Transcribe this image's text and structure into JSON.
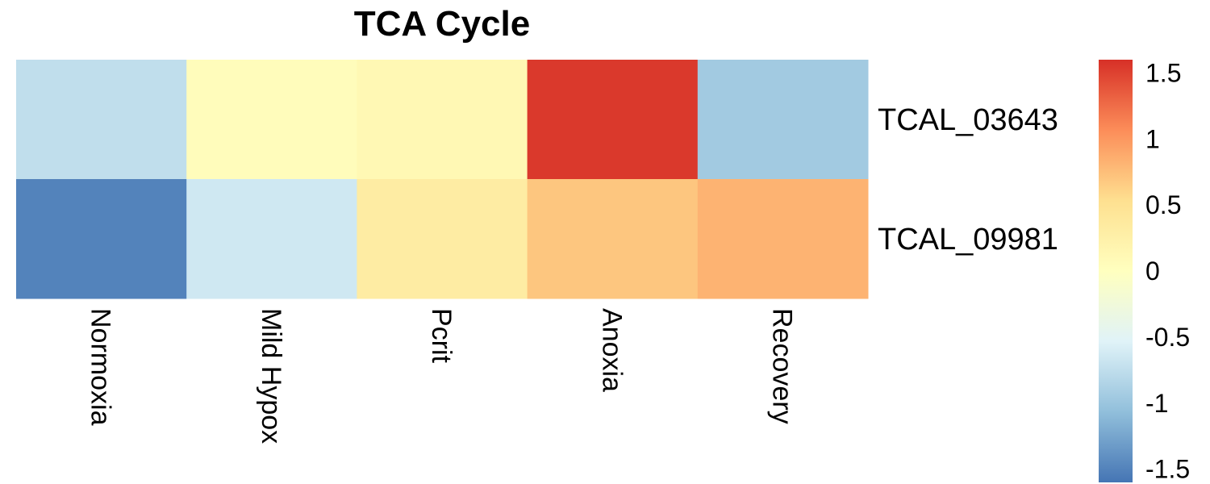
{
  "chart_data": {
    "type": "heatmap",
    "title": "TCA Cycle",
    "columns": [
      "Normoxia",
      "Mild Hypox",
      "Pcrit",
      "Anoxia",
      "Recovery"
    ],
    "rows": [
      "TCAL_03643",
      "TCAL_09981"
    ],
    "values": [
      [
        -0.75,
        0.05,
        0.12,
        1.55,
        -0.95
      ],
      [
        -1.5,
        -0.65,
        0.32,
        0.7,
        0.82
      ]
    ],
    "color_scale": {
      "min": -1.6,
      "max": 1.6,
      "stops": [
        "#4575B4",
        "#91BFDB",
        "#E0F3F8",
        "#FFFFBF",
        "#FEE090",
        "#FC8D59",
        "#D73027"
      ]
    },
    "legend": {
      "ticks": [
        "1.5",
        "1",
        "0.5",
        "0",
        "-0.5",
        "-1",
        "-1.5"
      ],
      "tick_values": [
        1.5,
        1,
        0.5,
        0,
        -0.5,
        -1,
        -1.5
      ],
      "position": "right"
    }
  }
}
